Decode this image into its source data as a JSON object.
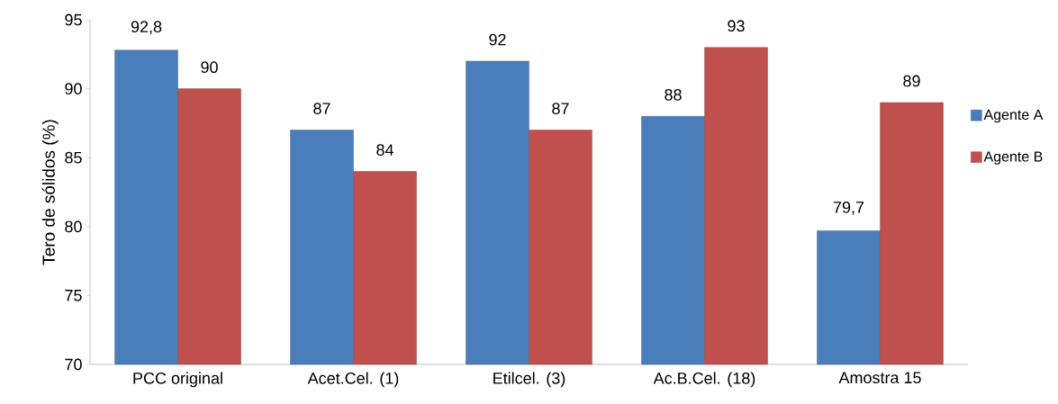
{
  "chart_data": {
    "type": "bar",
    "ylabel": "Tero de sólidos (%)",
    "categories": [
      "PCC original",
      "Acet.Cel. (1)",
      "Etilcel. (3)",
      "Ac.B.Cel. (18)",
      "Amostra 15"
    ],
    "series": [
      {
        "name": "Agente A",
        "color": "#4a7ebb",
        "values": [
          92.8,
          87,
          92,
          88,
          79.7
        ],
        "value_labels": [
          "92,8",
          "87",
          "92",
          "88",
          "79,7"
        ]
      },
      {
        "name": "Agente B",
        "color": "#c0504d",
        "values": [
          90,
          84,
          87,
          93,
          89
        ],
        "value_labels": [
          "90",
          "84",
          "87",
          "93",
          "89"
        ]
      }
    ],
    "ylim": [
      70,
      95
    ],
    "yticks": [
      70,
      75,
      80,
      85,
      90,
      95
    ],
    "grid": false,
    "legend": "right"
  }
}
